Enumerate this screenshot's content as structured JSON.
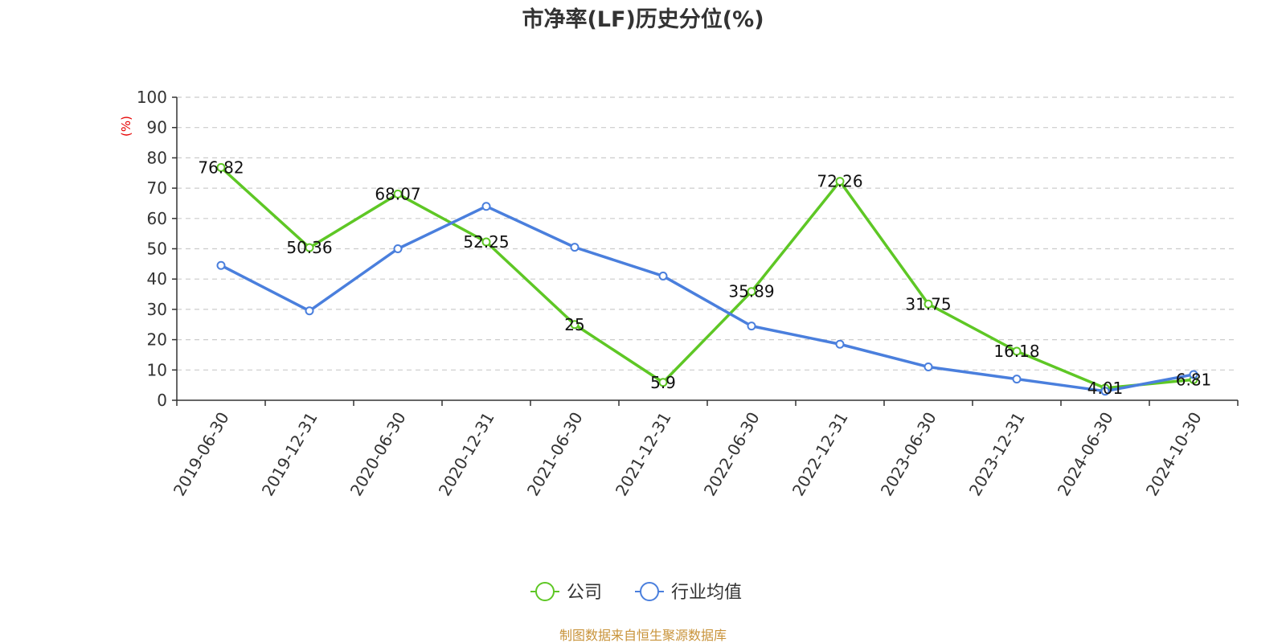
{
  "chart_data": {
    "type": "line",
    "title": "市净率(LF)历史分位(%)",
    "ylabel": "(%)",
    "ylim": [
      0,
      100
    ],
    "yticks": [
      0,
      10,
      20,
      30,
      40,
      50,
      60,
      70,
      80,
      90,
      100
    ],
    "grid": true,
    "legend_position": "bottom-center",
    "categories": [
      "2019-06-30",
      "2019-12-31",
      "2020-06-30",
      "2020-12-31",
      "2021-06-30",
      "2021-12-31",
      "2022-06-30",
      "2022-12-31",
      "2023-06-30",
      "2023-12-31",
      "2024-06-30",
      "2024-10-30"
    ],
    "series": [
      {
        "name": "公司",
        "color": "#5ec725",
        "values": [
          76.82,
          50.36,
          68.07,
          52.25,
          25,
          5.9,
          35.89,
          72.26,
          31.75,
          16.18,
          4.01,
          6.81
        ],
        "labels": [
          "76.82",
          "50.36",
          "68.07",
          "52.25",
          "25",
          "5.9",
          "35.89",
          "72.26",
          "31.75",
          "16.18",
          "4.01",
          "6.81"
        ]
      },
      {
        "name": "行业均值",
        "color": "#4a7fdd",
        "values": [
          44.5,
          29.5,
          50,
          64,
          50.5,
          41,
          24.5,
          18.5,
          11,
          7,
          3,
          8.5
        ]
      }
    ],
    "source": "制图数据来自恒生聚源数据库",
    "source_color": "#c8933a",
    "ylabel_color": "#e60000"
  }
}
